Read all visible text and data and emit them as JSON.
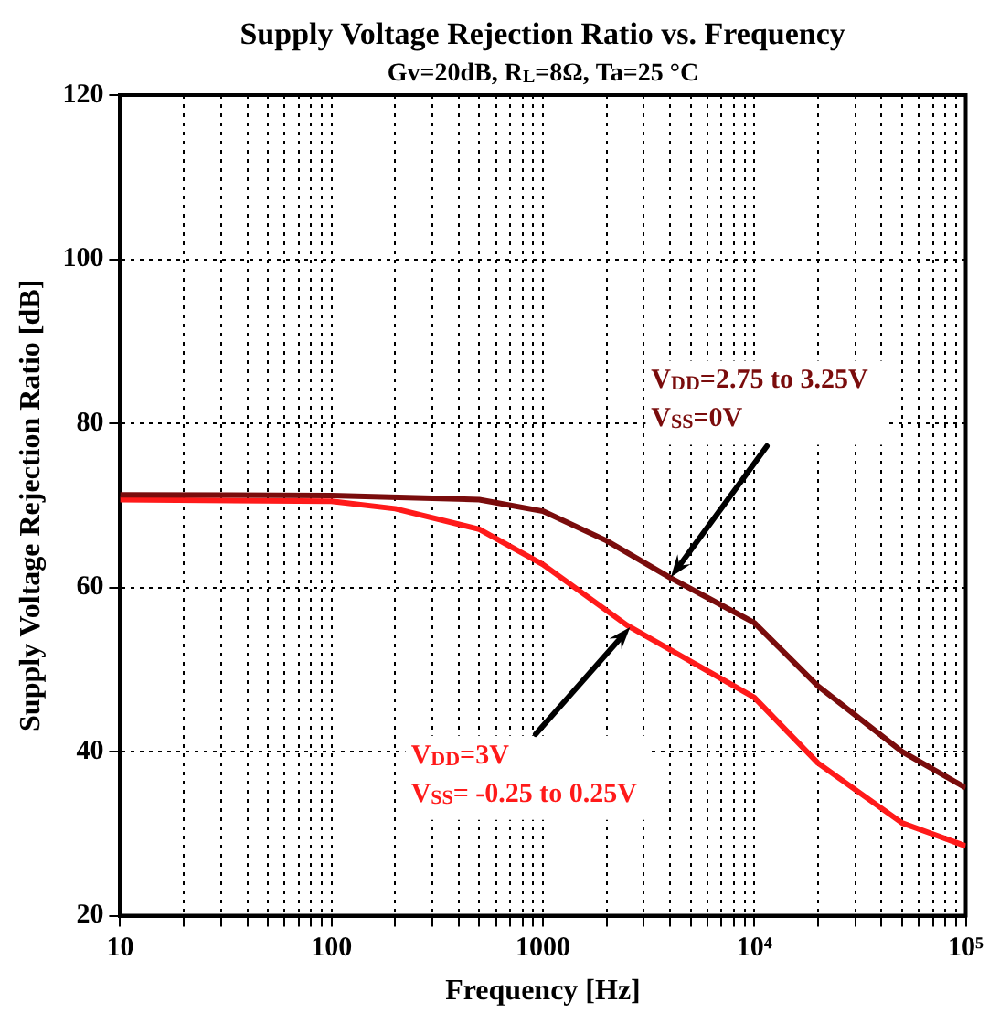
{
  "chart_data": {
    "type": "line",
    "title": "Supply Voltage Rejection Ratio vs. Frequency",
    "subtitle": "Gv=20dB, R$_{L}$=8Ω, Ta=25 °C",
    "xlabel": "Frequency [Hz]",
    "ylabel": "Supply Voltage Rejection Ratio [dB]",
    "log": "x",
    "xlim": [
      10,
      100000
    ],
    "ylim": [
      20,
      120
    ],
    "xticks": [
      10,
      {
        "value": 20,
        "label": null
      },
      {
        "value": 30,
        "label": null
      },
      {
        "value": 40,
        "label": null
      },
      {
        "value": 50,
        "label": null
      },
      {
        "value": 60,
        "label": null
      },
      {
        "value": 70,
        "label": null
      },
      {
        "value": 80,
        "label": null
      },
      {
        "value": 90,
        "label": null
      },
      100,
      {
        "value": 200,
        "label": null
      },
      {
        "value": 300,
        "label": null
      },
      {
        "value": 400,
        "label": null
      },
      {
        "value": 500,
        "label": null
      },
      {
        "value": 600,
        "label": null
      },
      {
        "value": 700,
        "label": null
      },
      {
        "value": 800,
        "label": null
      },
      {
        "value": 900,
        "label": null
      },
      1000,
      {
        "value": 2000,
        "label": null
      },
      {
        "value": 3000,
        "label": null
      },
      {
        "value": 4000,
        "label": null
      },
      {
        "value": 5000,
        "label": null
      },
      {
        "value": 6000,
        "label": null
      },
      {
        "value": 7000,
        "label": null
      },
      {
        "value": 8000,
        "label": null
      },
      {
        "value": 9000,
        "label": null
      },
      {
        "value": 10000,
        "label": "10⁴"
      },
      {
        "value": 20000,
        "label": null
      },
      {
        "value": 30000,
        "label": null
      },
      {
        "value": 40000,
        "label": null
      },
      {
        "value": 50000,
        "label": null
      },
      {
        "value": 60000,
        "label": null
      },
      {
        "value": 70000,
        "label": null
      },
      {
        "value": 80000,
        "label": null
      },
      {
        "value": 90000,
        "label": null
      },
      {
        "value": 100000,
        "label": "10⁵"
      }
    ],
    "yticks": [
      20,
      40,
      60,
      80,
      100,
      120
    ],
    "grid": true,
    "legend": false,
    "line_style": "solid",
    "marker": "none",
    "series": [
      {
        "color": "#7a0c0c",
        "x": [
          10,
          100,
          500,
          1000,
          2000,
          4000,
          10000,
          20000,
          50000,
          100000
        ],
        "values": [
          71.3,
          71.2,
          70.7,
          69.3,
          65.7,
          61.2,
          55.7,
          48,
          40,
          35.6
        ]
      },
      {
        "color": "#ff1a1a",
        "x": [
          10,
          100,
          200,
          500,
          1000,
          2500,
          10000,
          20000,
          50000,
          100000
        ],
        "values": [
          70.7,
          70.5,
          69.6,
          67.1,
          62.8,
          55.4,
          46.6,
          38.6,
          31.3,
          28.5
        ]
      }
    ],
    "annotations": [
      {
        "text": "V$_{DD}$=2.75 to 3.25V\nV$_{SS}$=0V",
        "x": 4000,
        "y": 61.2
      },
      {
        "text": "V$_{DD}$=3V\nV$_{SS}$= -0.25 to 0.25V",
        "x": 2600,
        "y": 55.2
      }
    ]
  }
}
